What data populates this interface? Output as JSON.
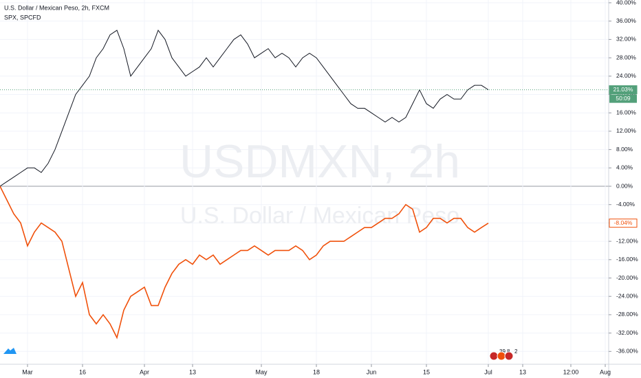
{
  "chart_data": {
    "type": "line",
    "title": "U.S. Dollar / Mexican Peso, 2h, FXCM",
    "watermark": "USDMXN, 2h",
    "watermark_subtitle": "U.S. Dollar / Mexican Peso",
    "countdown": "50:09",
    "event_badges": [
      "39",
      "8",
      "2"
    ],
    "categories": [
      null,
      null,
      null,
      null,
      "Mar",
      null,
      null,
      null,
      null,
      null,
      null,
      null,
      "16",
      null,
      null,
      null,
      null,
      null,
      null,
      null,
      null,
      "Apr",
      null,
      null,
      null,
      null,
      null,
      null,
      "13",
      null,
      null,
      null,
      null,
      null,
      null,
      null,
      null,
      null,
      "May",
      null,
      null,
      null,
      null,
      null,
      null,
      null,
      "18",
      null,
      null,
      null,
      null,
      null,
      null,
      null,
      "Jun",
      null,
      null,
      null,
      null,
      null,
      null,
      null,
      "15",
      null,
      null,
      null,
      null,
      null,
      null,
      null,
      null,
      "Jul",
      null,
      null,
      null,
      null,
      "13",
      null,
      null,
      null,
      null,
      null,
      null,
      "12:00",
      null,
      null,
      null,
      null,
      "Aug"
    ],
    "series": [
      {
        "name": "U.S. Dollar / Mexican Peso, 2h, FXCM",
        "color": "#131722",
        "last_label": "21.03%",
        "label_color": "#53a07a",
        "values": [
          0,
          1,
          2,
          3,
          4,
          4,
          3,
          5,
          8,
          12,
          16,
          20,
          22,
          24,
          28,
          30,
          33,
          34,
          30,
          24,
          26,
          28,
          30,
          34,
          32,
          28,
          26,
          24,
          25,
          26,
          28,
          26,
          28,
          30,
          32,
          33,
          31,
          28,
          29,
          30,
          28,
          29,
          28,
          26,
          28,
          29,
          28,
          26,
          24,
          22,
          20,
          18,
          17,
          17,
          16,
          15,
          14,
          15,
          14,
          15,
          18,
          21,
          18,
          17,
          19,
          20,
          19,
          19,
          21,
          22,
          22,
          21.03,
          null,
          null,
          null,
          null,
          null,
          null,
          null,
          null,
          null,
          null,
          null,
          null,
          null,
          null,
          null,
          null,
          null
        ]
      },
      {
        "name": "SPX, SPCFD",
        "color": "#f0500a",
        "last_label": "-8.04%",
        "label_color": "#f0500a",
        "values": [
          0,
          -3,
          -6,
          -8,
          -13,
          -10,
          -8,
          -9,
          -10,
          -12,
          -18,
          -24,
          -21,
          -28,
          -30,
          -28,
          -30,
          -33,
          -27,
          -24,
          -23,
          -22,
          -26,
          -26,
          -22,
          -19,
          -17,
          -16,
          -17,
          -15,
          -16,
          -15,
          -17,
          -16,
          -15,
          -14,
          -14,
          -13,
          -14,
          -15,
          -14,
          -14,
          -14,
          -13,
          -14,
          -16,
          -15,
          -13,
          -12,
          -12,
          -12,
          -11,
          -10,
          -9,
          -9,
          -8,
          -7,
          -7,
          -6,
          -4,
          -5,
          -10,
          -9,
          -7,
          -7,
          -8,
          -7,
          -7,
          -9,
          -10,
          -9,
          -8.04,
          null,
          null,
          null,
          null,
          null,
          null,
          null,
          null,
          null,
          null,
          null,
          null,
          null,
          null,
          null,
          null,
          null
        ]
      }
    ],
    "ylim": [
      -38.8,
      40
    ],
    "yticks": [
      {
        "value": 40,
        "label": "40.00%"
      },
      {
        "value": 36,
        "label": "36.00%"
      },
      {
        "value": 32,
        "label": "32.00%"
      },
      {
        "value": 28,
        "label": "28.00%"
      },
      {
        "value": 24,
        "label": "24.00%"
      },
      {
        "value": 20,
        "label": "20.00%"
      },
      {
        "value": 16,
        "label": "16.00%"
      },
      {
        "value": 12,
        "label": "12.00%"
      },
      {
        "value": 8,
        "label": "8.00%"
      },
      {
        "value": 4,
        "label": "4.00%"
      },
      {
        "value": 0,
        "label": "0.00%"
      },
      {
        "value": -4,
        "label": "-4.00%"
      },
      {
        "value": -8,
        "label": "-8.00%"
      },
      {
        "value": -12,
        "label": "-12.00%"
      },
      {
        "value": -16,
        "label": "-16.00%"
      },
      {
        "value": -20,
        "label": "-20.00%"
      },
      {
        "value": -24,
        "label": "-24.00%"
      },
      {
        "value": -28,
        "label": "-28.00%"
      },
      {
        "value": -32,
        "label": "-32.00%"
      },
      {
        "value": -36,
        "label": "-36.00%"
      }
    ],
    "grid": true
  }
}
